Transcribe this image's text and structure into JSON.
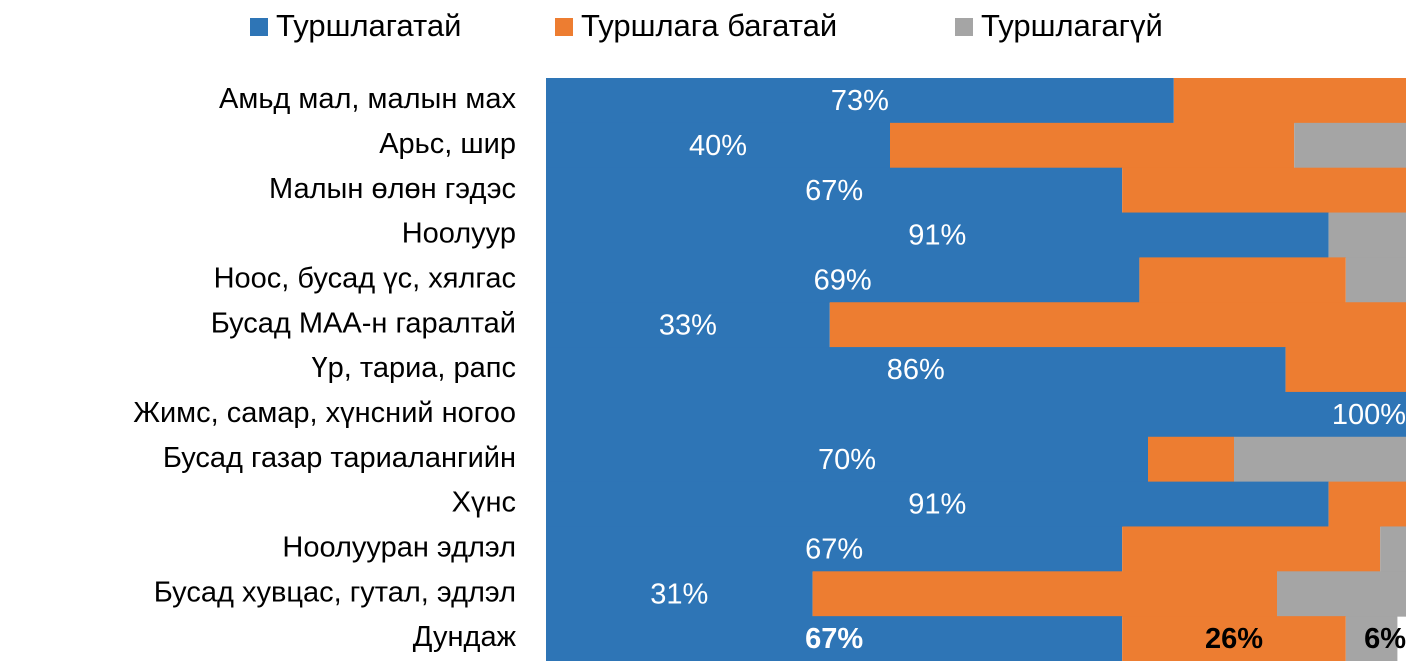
{
  "chart_data": {
    "type": "stacked-barh",
    "categories": [
      "Амьд мал, малын мах",
      "Арьс, шир",
      "Малын өлөн гэдэс",
      "Ноолуур",
      "Ноос, бусад үс, хялгас",
      "Бусад МАА-н гаралтай",
      "Үр, тариа, рапс",
      "Жимс, самар, хүнсний ногоо",
      "Бусад газар тариалангийн",
      "Хүнс",
      "Ноолууран эдлэл",
      "Бусад хувцас, гутал, эдлэл",
      "Дундаж"
    ],
    "series": [
      {
        "name": "Туршлагатай",
        "color": "#2e75b6",
        "values": [
          73,
          40,
          67,
          91,
          69,
          33,
          86,
          100,
          70,
          91,
          67,
          31,
          67
        ],
        "value_labels": [
          "73%",
          "40%",
          "67%",
          "91%",
          "69%",
          "33%",
          "86%",
          "100%",
          "70%",
          "91%",
          "67%",
          "31%",
          "67%"
        ]
      },
      {
        "name": "Туршлага багатай",
        "color": "#ed7d31",
        "values": [
          27,
          47,
          33,
          0,
          24,
          67,
          14,
          0,
          10,
          9,
          30,
          54,
          26
        ],
        "value_labels": [
          null,
          null,
          null,
          null,
          null,
          null,
          null,
          null,
          null,
          null,
          null,
          null,
          "26%"
        ]
      },
      {
        "name": "Туршлагагүй",
        "color": "#a5a5a5",
        "values": [
          0,
          13,
          0,
          9,
          7,
          0,
          0,
          0,
          20,
          0,
          3,
          15,
          6
        ],
        "value_labels": [
          null,
          null,
          null,
          null,
          null,
          null,
          null,
          null,
          null,
          null,
          null,
          null,
          "6%"
        ]
      }
    ],
    "xlim": [
      0,
      100
    ],
    "legend": "top"
  }
}
